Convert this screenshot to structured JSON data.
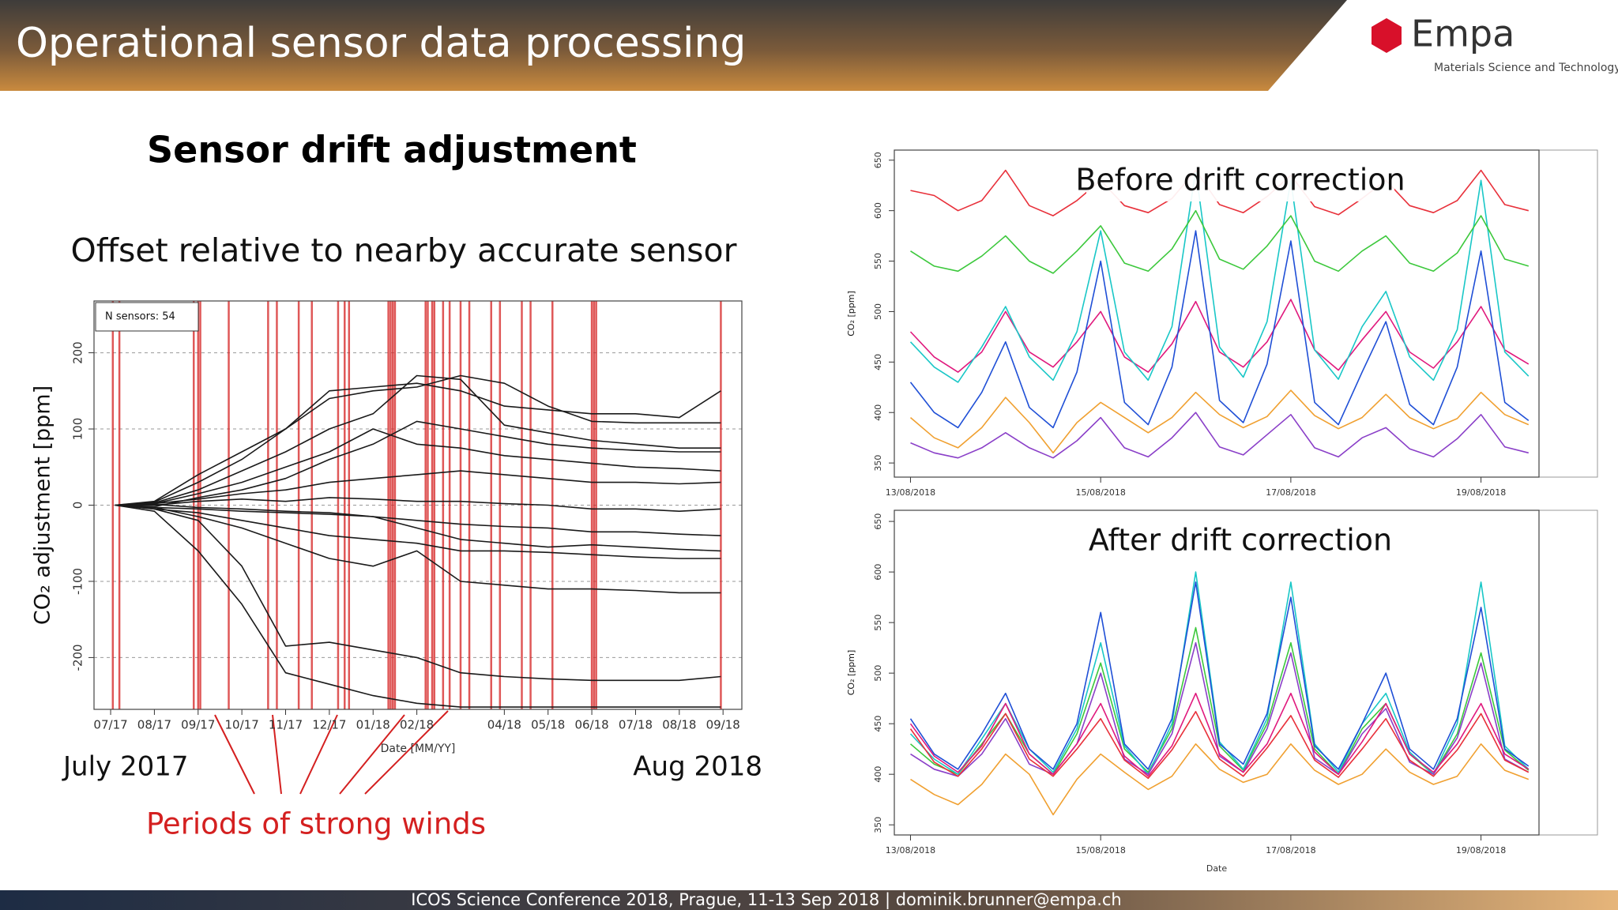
{
  "header": {
    "title": "Operational sensor data processing"
  },
  "logo": {
    "name": "Empa",
    "tagline": "Materials Science and Technology"
  },
  "slide": {
    "heading": "Sensor drift adjustment",
    "subheading": "Offset relative to nearby accurate sensor",
    "start_label": "July 2017",
    "end_label": "Aug 2018",
    "wind_label": "Periods of strong winds"
  },
  "footer": {
    "text": "ICOS Science Conference 2018,  Prague, 11-13 Sep 2018 | dominik.brunner@empa.ch"
  },
  "chart_data": [
    {
      "type": "line",
      "ylabel": "CO₂ adjustment [ppm]",
      "xlabel": "Date [MM/YY]",
      "annotation": "N sensors: 54",
      "x": [
        0.1,
        1,
        2,
        3,
        4,
        5,
        6,
        7,
        8,
        9,
        10,
        11,
        12,
        13,
        13.95
      ],
      "xlim": [
        -0.38,
        14.43
      ],
      "xticks": [
        {
          "value": 0,
          "label": "07/17"
        },
        {
          "value": 1,
          "label": "08/17"
        },
        {
          "value": 2,
          "label": "09/17"
        },
        {
          "value": 3,
          "label": "10/17"
        },
        {
          "value": 4,
          "label": "11/17"
        },
        {
          "value": 5,
          "label": "12/17"
        },
        {
          "value": 6,
          "label": "01/18"
        },
        {
          "value": 7,
          "label": "02/18"
        },
        {
          "value": 9,
          "label": "04/18"
        },
        {
          "value": 10,
          "label": "05/18"
        },
        {
          "value": 11,
          "label": "06/18"
        },
        {
          "value": 12,
          "label": "07/18"
        },
        {
          "value": 13,
          "label": "08/18"
        },
        {
          "value": 14,
          "label": "09/18"
        }
      ],
      "ylim": [
        -268,
        268
      ],
      "yticks": [
        -200,
        -100,
        0,
        100,
        200
      ],
      "grid": true,
      "color": "#1a1a1a",
      "vlines": [
        0.05,
        0.2,
        1.9,
        2.0,
        2.05,
        2.7,
        3.6,
        3.8,
        4.3,
        4.6,
        5.2,
        5.35,
        5.45,
        6.35,
        6.4,
        6.45,
        6.5,
        7.2,
        7.25,
        7.35,
        7.4,
        7.6,
        7.75,
        8.0,
        8.2,
        8.7,
        8.9,
        9.4,
        9.6,
        10.1,
        11.0,
        11.05,
        11.1,
        13.95
      ],
      "vline_color": "#d42020",
      "series": [
        {
          "values": [
            0,
            5,
            40,
            70,
            100,
            150,
            155,
            160,
            150,
            130,
            125,
            120,
            120,
            115,
            150
          ]
        },
        {
          "values": [
            0,
            3,
            20,
            45,
            70,
            100,
            120,
            170,
            165,
            105,
            95,
            85,
            80,
            75,
            75
          ]
        },
        {
          "values": [
            0,
            -2,
            10,
            20,
            35,
            60,
            80,
            110,
            100,
            90,
            80,
            75,
            72,
            70,
            70
          ]
        },
        {
          "values": [
            0,
            2,
            8,
            15,
            20,
            30,
            35,
            40,
            45,
            40,
            35,
            30,
            30,
            28,
            30
          ]
        },
        {
          "values": [
            0,
            0,
            5,
            8,
            5,
            10,
            8,
            5,
            5,
            2,
            0,
            -5,
            -5,
            -8,
            -5
          ]
        },
        {
          "values": [
            0,
            -3,
            -5,
            -8,
            -10,
            -12,
            -15,
            -20,
            -25,
            -28,
            -30,
            -35,
            -35,
            -38,
            -40
          ]
        },
        {
          "values": [
            0,
            -5,
            -10,
            -20,
            -30,
            -40,
            -45,
            -50,
            -60,
            -60,
            -62,
            -65,
            -68,
            -70,
            -70
          ]
        },
        {
          "values": [
            0,
            -5,
            -20,
            -80,
            -185,
            -180,
            -190,
            -200,
            -220,
            -225,
            -228,
            -230,
            -230,
            -230,
            -225
          ]
        },
        {
          "values": [
            0,
            -8,
            -60,
            -130,
            -220,
            -235,
            -250,
            -260,
            -265,
            -265,
            -265,
            -265,
            -265,
            -265,
            -265
          ]
        },
        {
          "values": [
            0,
            2,
            15,
            30,
            50,
            70,
            100,
            80,
            75,
            65,
            60,
            55,
            50,
            48,
            45
          ]
        },
        {
          "values": [
            0,
            -3,
            -15,
            -30,
            -50,
            -70,
            -80,
            -60,
            -100,
            -105,
            -110,
            -110,
            -112,
            -115,
            -115
          ]
        },
        {
          "values": [
            0,
            1,
            -3,
            -5,
            -8,
            -10,
            -15,
            -30,
            -45,
            -50,
            -55,
            -52,
            -55,
            -58,
            -60
          ]
        },
        {
          "values": [
            0,
            4,
            30,
            60,
            100,
            140,
            150,
            155,
            170,
            160,
            130,
            110,
            108,
            108,
            108
          ]
        }
      ]
    },
    {
      "type": "line",
      "title": "Before drift correction",
      "ylabel": "CO₂ [ppm]",
      "x": [
        0,
        0.25,
        0.5,
        0.75,
        1,
        1.25,
        1.5,
        1.75,
        2,
        2.25,
        2.5,
        2.75,
        3,
        3.25,
        3.5,
        3.75,
        4,
        4.25,
        4.5,
        4.75,
        5,
        5.25,
        5.5,
        5.75,
        6,
        6.25,
        6.5
      ],
      "xlim": [
        -0.17,
        6.61
      ],
      "xticks": [
        {
          "value": 0,
          "label": "13/08/2018"
        },
        {
          "value": 2,
          "label": "15/08/2018"
        },
        {
          "value": 4,
          "label": "17/08/2018"
        },
        {
          "value": 6,
          "label": "19/08/2018"
        }
      ],
      "ylim": [
        336,
        660
      ],
      "yticks": [
        350,
        400,
        450,
        500,
        550,
        600,
        650
      ],
      "series": [
        {
          "color": "#e0197d",
          "values": [
            480,
            455,
            440,
            460,
            500,
            460,
            445,
            470,
            500,
            455,
            440,
            468,
            510,
            460,
            445,
            470,
            512,
            462,
            442,
            472,
            500,
            460,
            444,
            470,
            505,
            462,
            448
          ]
        },
        {
          "color": "#1f4fd6",
          "values": [
            430,
            400,
            385,
            420,
            470,
            405,
            385,
            440,
            550,
            410,
            388,
            445,
            580,
            412,
            390,
            448,
            570,
            410,
            388,
            440,
            490,
            408,
            388,
            445,
            560,
            410,
            392
          ]
        },
        {
          "color": "#19c7c7",
          "values": [
            470,
            445,
            430,
            465,
            505,
            455,
            432,
            480,
            580,
            460,
            432,
            485,
            640,
            465,
            435,
            490,
            630,
            462,
            433,
            485,
            520,
            455,
            432,
            482,
            630,
            460,
            436
          ]
        },
        {
          "color": "#e8303a",
          "values": [
            620,
            615,
            600,
            610,
            640,
            605,
            595,
            610,
            630,
            605,
            598,
            612,
            640,
            606,
            598,
            614,
            635,
            604,
            596,
            612,
            630,
            605,
            598,
            610,
            640,
            606,
            600
          ]
        },
        {
          "color": "#3cc83c",
          "values": [
            560,
            545,
            540,
            555,
            575,
            550,
            538,
            560,
            585,
            548,
            540,
            562,
            600,
            552,
            542,
            565,
            595,
            550,
            540,
            560,
            575,
            548,
            540,
            558,
            595,
            552,
            545
          ]
        },
        {
          "color": "#f0a030",
          "values": [
            395,
            375,
            365,
            385,
            415,
            390,
            360,
            390,
            410,
            395,
            380,
            395,
            420,
            398,
            385,
            396,
            422,
            397,
            384,
            395,
            418,
            395,
            384,
            394,
            420,
            398,
            388
          ]
        },
        {
          "color": "#8a3fc8",
          "values": [
            370,
            360,
            355,
            365,
            380,
            365,
            355,
            372,
            395,
            365,
            356,
            375,
            400,
            366,
            358,
            378,
            398,
            365,
            356,
            375,
            385,
            364,
            356,
            374,
            398,
            366,
            360
          ]
        }
      ]
    },
    {
      "type": "line",
      "title": "After drift correction",
      "ylabel": "CO₂ [ppm]",
      "xlabel": "Date",
      "x": [
        0,
        0.25,
        0.5,
        0.75,
        1,
        1.25,
        1.5,
        1.75,
        2,
        2.25,
        2.5,
        2.75,
        3,
        3.25,
        3.5,
        3.75,
        4,
        4.25,
        4.5,
        4.75,
        5,
        5.25,
        5.5,
        5.75,
        6,
        6.25,
        6.5
      ],
      "xlim": [
        -0.17,
        6.61
      ],
      "xticks": [
        {
          "value": 0,
          "label": "13/08/2018"
        },
        {
          "value": 2,
          "label": "15/08/2018"
        },
        {
          "value": 4,
          "label": "17/08/2018"
        },
        {
          "value": 6,
          "label": "19/08/2018"
        }
      ],
      "ylim": [
        340,
        661
      ],
      "yticks": [
        350,
        400,
        450,
        500,
        550,
        600,
        650
      ],
      "series": [
        {
          "color": "#f0a030",
          "values": [
            395,
            380,
            370,
            390,
            420,
            400,
            360,
            395,
            420,
            402,
            385,
            398,
            430,
            405,
            392,
            400,
            430,
            404,
            390,
            400,
            425,
            402,
            390,
            398,
            430,
            404,
            395
          ]
        },
        {
          "color": "#3cc83c",
          "values": [
            430,
            410,
            400,
            430,
            460,
            420,
            400,
            440,
            510,
            425,
            402,
            445,
            545,
            428,
            404,
            450,
            530,
            425,
            400,
            445,
            470,
            420,
            400,
            440,
            520,
            424,
            404
          ]
        },
        {
          "color": "#19c7c7",
          "values": [
            440,
            415,
            400,
            435,
            470,
            425,
            402,
            445,
            530,
            428,
            400,
            450,
            600,
            432,
            405,
            455,
            590,
            430,
            402,
            450,
            480,
            422,
            400,
            450,
            590,
            428,
            405
          ]
        },
        {
          "color": "#1f4fd6",
          "values": [
            455,
            420,
            405,
            440,
            480,
            425,
            405,
            450,
            560,
            430,
            405,
            455,
            590,
            430,
            410,
            460,
            575,
            428,
            405,
            450,
            500,
            425,
            405,
            455,
            565,
            425,
            408
          ]
        },
        {
          "color": "#8a3fc8",
          "values": [
            420,
            405,
            398,
            420,
            455,
            410,
            400,
            430,
            500,
            415,
            400,
            440,
            530,
            418,
            402,
            445,
            520,
            416,
            400,
            440,
            465,
            412,
            400,
            436,
            510,
            415,
            402
          ]
        },
        {
          "color": "#e8303a",
          "values": [
            445,
            412,
            398,
            425,
            460,
            415,
            398,
            425,
            455,
            414,
            396,
            424,
            462,
            415,
            398,
            426,
            458,
            414,
            397,
            425,
            455,
            414,
            398,
            424,
            460,
            414,
            402
          ]
        },
        {
          "color": "#e0197d",
          "values": [
            450,
            418,
            402,
            428,
            470,
            420,
            400,
            430,
            470,
            418,
            398,
            428,
            480,
            420,
            402,
            430,
            480,
            422,
            400,
            432,
            470,
            420,
            402,
            430,
            470,
            420,
            405
          ]
        }
      ]
    }
  ]
}
